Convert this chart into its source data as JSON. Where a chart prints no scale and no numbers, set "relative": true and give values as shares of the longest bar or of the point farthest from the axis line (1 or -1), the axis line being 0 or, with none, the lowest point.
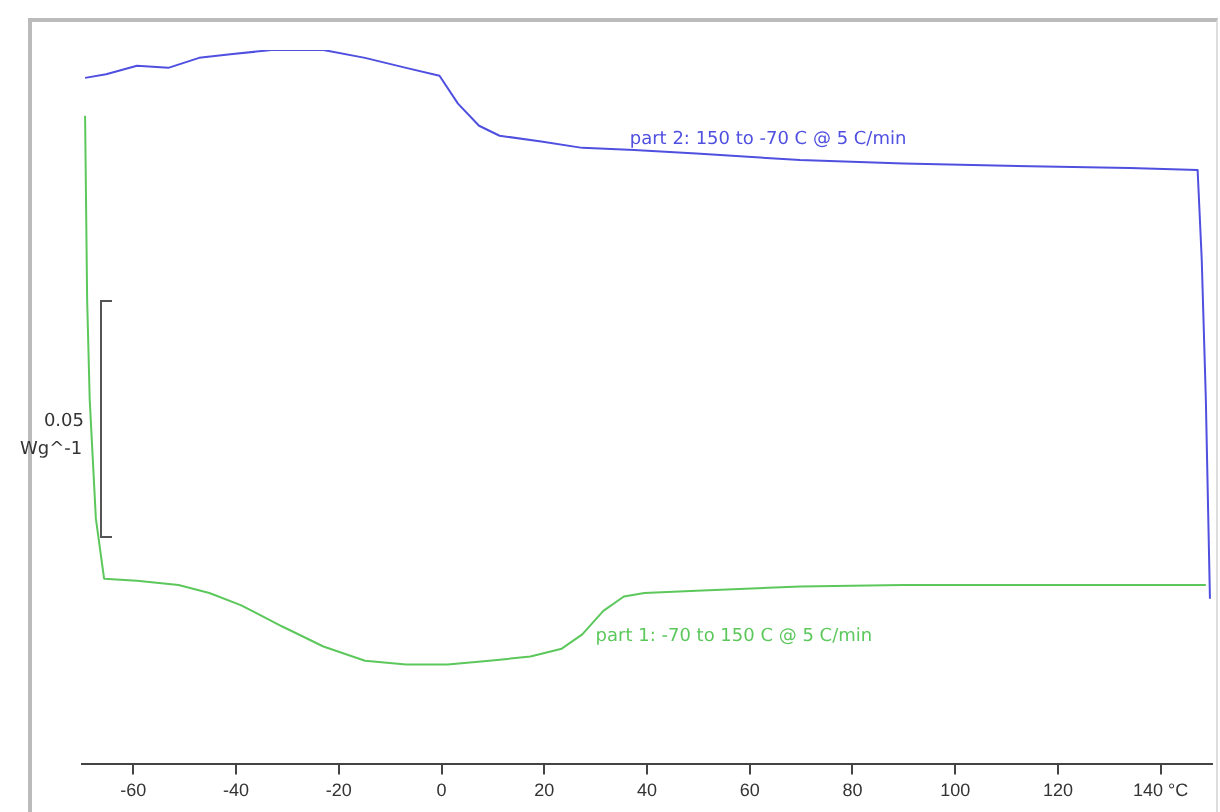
{
  "chart_data": {
    "type": "line",
    "relative": true,
    "annotations": [
      "0.05",
      "Wg^-1"
    ],
    "legend": false,
    "grid": false,
    "marker": "none",
    "line_style": "solid",
    "tick_labels": "x",
    "xlim": [
      -70,
      150
    ],
    "xticks": [
      -60,
      -40,
      -20,
      0,
      20,
      40,
      60,
      80,
      100,
      120,
      {
        "value": 140,
        "label": "140 °C"
      }
    ],
    "series": [
      {
        "name": "part 2: 150 to -70 C @ 5 C/min",
        "color": "#4f4fe0",
        "x": [
          -69.4,
          -65.3,
          -59.3,
          -53.2,
          -47.2,
          -41.1,
          -33.1,
          -23,
          -14.9,
          -6.9,
          -0.4,
          3.2,
          7.3,
          11.3,
          19.4,
          27.4,
          37.5,
          49.6,
          69.8,
          89.9,
          110,
          134,
          147.2,
          148,
          148.8,
          149.6
        ],
        "values": [
          0.961,
          0.966,
          0.978,
          0.975,
          0.989,
          0.994,
          1,
          1,
          0.989,
          0.975,
          0.964,
          0.925,
          0.894,
          0.88,
          0.872,
          0.863,
          0.86,
          0.855,
          0.846,
          0.841,
          0.838,
          0.835,
          0.832,
          0.707,
          0.511,
          0.232
        ]
      },
      {
        "name": "part 1: -70 to 150 C @ 5 C/min",
        "color": "#5cc85c",
        "x": [
          -69.4,
          -69,
          -68.5,
          -67.3,
          -65.7,
          -59.3,
          -51.2,
          -45.2,
          -39.1,
          -31,
          -23,
          -14.9,
          -6.9,
          1.2,
          9.3,
          17.3,
          23.4,
          27.4,
          31.5,
          35.5,
          39.5,
          49.6,
          69.8,
          89.9,
          110,
          130.2,
          148.8
        ],
        "values": [
          0.908,
          0.651,
          0.511,
          0.344,
          0.26,
          0.257,
          0.251,
          0.24,
          0.223,
          0.193,
          0.165,
          0.145,
          0.14,
          0.14,
          0.145,
          0.151,
          0.162,
          0.182,
          0.215,
          0.235,
          0.24,
          0.243,
          0.249,
          0.251,
          0.251,
          0.251,
          0.251
        ]
      }
    ]
  }
}
